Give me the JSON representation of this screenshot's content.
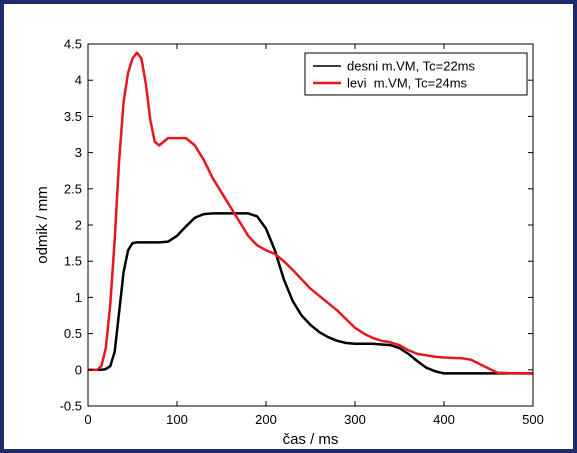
{
  "chart_data": {
    "type": "line",
    "title": "",
    "xlabel": "čas / ms",
    "ylabel": "odmik / mm",
    "xlim": [
      0,
      500
    ],
    "ylim": [
      -0.5,
      4.5
    ],
    "xticks": [
      0,
      100,
      200,
      300,
      400,
      500
    ],
    "yticks": [
      -0.5,
      0,
      0.5,
      1,
      1.5,
      2,
      2.5,
      3,
      3.5,
      4,
      4.5
    ],
    "legend_position": "top-right",
    "grid": false,
    "series": [
      {
        "name": "desni m.VM, Tc=22ms",
        "color": "#000000",
        "points": [
          [
            0,
            0
          ],
          [
            15,
            0
          ],
          [
            20,
            0.01
          ],
          [
            25,
            0.05
          ],
          [
            30,
            0.25
          ],
          [
            35,
            0.8
          ],
          [
            40,
            1.35
          ],
          [
            45,
            1.65
          ],
          [
            50,
            1.75
          ],
          [
            55,
            1.76
          ],
          [
            60,
            1.76
          ],
          [
            70,
            1.76
          ],
          [
            80,
            1.76
          ],
          [
            90,
            1.77
          ],
          [
            100,
            1.85
          ],
          [
            110,
            1.98
          ],
          [
            120,
            2.1
          ],
          [
            130,
            2.15
          ],
          [
            140,
            2.16
          ],
          [
            150,
            2.16
          ],
          [
            160,
            2.16
          ],
          [
            170,
            2.16
          ],
          [
            180,
            2.16
          ],
          [
            190,
            2.12
          ],
          [
            200,
            1.95
          ],
          [
            210,
            1.65
          ],
          [
            220,
            1.25
          ],
          [
            230,
            0.95
          ],
          [
            240,
            0.75
          ],
          [
            250,
            0.62
          ],
          [
            260,
            0.52
          ],
          [
            270,
            0.45
          ],
          [
            280,
            0.4
          ],
          [
            290,
            0.37
          ],
          [
            300,
            0.36
          ],
          [
            310,
            0.36
          ],
          [
            320,
            0.36
          ],
          [
            330,
            0.35
          ],
          [
            340,
            0.34
          ],
          [
            350,
            0.3
          ],
          [
            360,
            0.22
          ],
          [
            370,
            0.12
          ],
          [
            380,
            0.03
          ],
          [
            390,
            -0.02
          ],
          [
            400,
            -0.05
          ],
          [
            420,
            -0.05
          ],
          [
            460,
            -0.05
          ],
          [
            500,
            -0.05
          ]
        ]
      },
      {
        "name": "levi  m.VM, Tc=24ms",
        "color": "#e8161e",
        "points": [
          [
            0,
            0
          ],
          [
            10,
            0
          ],
          [
            15,
            0.05
          ],
          [
            20,
            0.3
          ],
          [
            25,
            0.9
          ],
          [
            30,
            1.8
          ],
          [
            35,
            2.9
          ],
          [
            40,
            3.7
          ],
          [
            45,
            4.1
          ],
          [
            50,
            4.3
          ],
          [
            55,
            4.38
          ],
          [
            60,
            4.3
          ],
          [
            65,
            3.95
          ],
          [
            70,
            3.45
          ],
          [
            75,
            3.15
          ],
          [
            80,
            3.1
          ],
          [
            90,
            3.2
          ],
          [
            100,
            3.2
          ],
          [
            110,
            3.2
          ],
          [
            120,
            3.1
          ],
          [
            130,
            2.9
          ],
          [
            140,
            2.65
          ],
          [
            150,
            2.45
          ],
          [
            160,
            2.25
          ],
          [
            170,
            2.05
          ],
          [
            180,
            1.85
          ],
          [
            190,
            1.72
          ],
          [
            200,
            1.65
          ],
          [
            210,
            1.6
          ],
          [
            220,
            1.5
          ],
          [
            230,
            1.38
          ],
          [
            240,
            1.25
          ],
          [
            250,
            1.12
          ],
          [
            260,
            1.02
          ],
          [
            270,
            0.92
          ],
          [
            280,
            0.82
          ],
          [
            290,
            0.7
          ],
          [
            300,
            0.58
          ],
          [
            310,
            0.5
          ],
          [
            320,
            0.44
          ],
          [
            330,
            0.4
          ],
          [
            340,
            0.38
          ],
          [
            350,
            0.34
          ],
          [
            360,
            0.27
          ],
          [
            370,
            0.22
          ],
          [
            380,
            0.2
          ],
          [
            390,
            0.18
          ],
          [
            400,
            0.17
          ],
          [
            420,
            0.16
          ],
          [
            430,
            0.14
          ],
          [
            440,
            0.08
          ],
          [
            450,
            0.02
          ],
          [
            460,
            -0.04
          ],
          [
            480,
            -0.05
          ],
          [
            500,
            -0.05
          ]
        ]
      }
    ]
  }
}
